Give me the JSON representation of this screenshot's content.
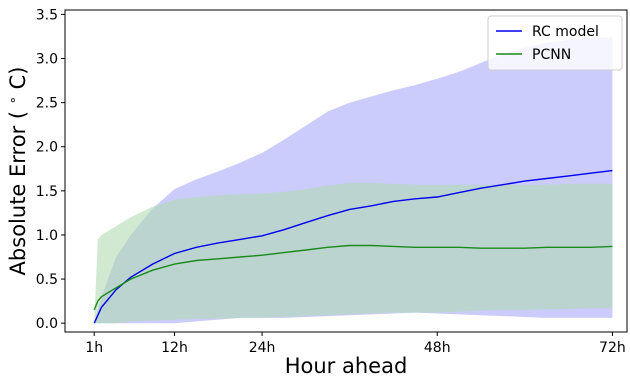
{
  "chart_data": {
    "type": "line",
    "xlabel": "Hour ahead",
    "ylabel": "Absolute Error ( $^\\circ$C)",
    "ylabel_display": "Absolute Error (",
    "ylabel_unit": "C)",
    "ylabel_degree": "∘",
    "xlim": [
      -3,
      74
    ],
    "ylim": [
      -0.1,
      3.55
    ],
    "x_ticks": [
      {
        "value": 1,
        "label": "1h"
      },
      {
        "value": 12,
        "label": "12h"
      },
      {
        "value": 24,
        "label": "24h"
      },
      {
        "value": 48,
        "label": "48h"
      },
      {
        "value": 72,
        "label": "72h"
      }
    ],
    "y_ticks": [
      {
        "value": 0.0,
        "label": "0.0"
      },
      {
        "value": 0.5,
        "label": "0.5"
      },
      {
        "value": 1.0,
        "label": "1.0"
      },
      {
        "value": 1.5,
        "label": "1.5"
      },
      {
        "value": 2.0,
        "label": "2.0"
      },
      {
        "value": 2.5,
        "label": "2.5"
      },
      {
        "value": 3.0,
        "label": "3.0"
      },
      {
        "value": 3.5,
        "label": "3.5"
      }
    ],
    "grid": false,
    "legend_position": "top-right",
    "series": [
      {
        "name": "RC model",
        "color": "#0000ee",
        "band_color": "#a8a8fa",
        "x": [
          1,
          2,
          4,
          6,
          9,
          12,
          15,
          18,
          21,
          24,
          27,
          30,
          33,
          36,
          39,
          42,
          45,
          48,
          51,
          54,
          57,
          60,
          63,
          66,
          69,
          72
        ],
        "mean": [
          0.0,
          0.18,
          0.38,
          0.52,
          0.67,
          0.79,
          0.86,
          0.91,
          0.95,
          0.99,
          1.06,
          1.14,
          1.22,
          1.29,
          1.33,
          1.38,
          1.41,
          1.43,
          1.48,
          1.53,
          1.57,
          1.61,
          1.64,
          1.67,
          1.7,
          1.73
        ],
        "upper": [
          0.0,
          0.3,
          0.75,
          1.0,
          1.3,
          1.52,
          1.63,
          1.72,
          1.82,
          1.93,
          2.08,
          2.24,
          2.4,
          2.5,
          2.57,
          2.64,
          2.7,
          2.77,
          2.85,
          2.95,
          3.05,
          3.12,
          3.18,
          3.21,
          3.23,
          3.24
        ],
        "lower": [
          0.0,
          0.0,
          0.0,
          0.0,
          0.0,
          0.0,
          0.02,
          0.04,
          0.06,
          0.06,
          0.06,
          0.07,
          0.08,
          0.09,
          0.1,
          0.11,
          0.12,
          0.11,
          0.1,
          0.09,
          0.08,
          0.07,
          0.06,
          0.06,
          0.06,
          0.06
        ]
      },
      {
        "name": "PCNN",
        "color": "#1a8a1a",
        "band_color": "#b3dbb3",
        "x": [
          1,
          1.5,
          2,
          4,
          6,
          9,
          12,
          15,
          18,
          21,
          24,
          27,
          30,
          33,
          36,
          39,
          42,
          45,
          48,
          51,
          54,
          57,
          60,
          63,
          66,
          69,
          72
        ],
        "mean": [
          0.15,
          0.25,
          0.3,
          0.4,
          0.5,
          0.6,
          0.67,
          0.71,
          0.73,
          0.75,
          0.77,
          0.8,
          0.83,
          0.86,
          0.88,
          0.88,
          0.87,
          0.86,
          0.86,
          0.86,
          0.85,
          0.85,
          0.85,
          0.86,
          0.86,
          0.86,
          0.87
        ],
        "upper": [
          0.0,
          0.95,
          1.0,
          1.1,
          1.2,
          1.32,
          1.4,
          1.43,
          1.45,
          1.46,
          1.47,
          1.49,
          1.52,
          1.56,
          1.59,
          1.59,
          1.58,
          1.57,
          1.57,
          1.57,
          1.57,
          1.57,
          1.57,
          1.57,
          1.58,
          1.58,
          1.58
        ],
        "lower": [
          0.0,
          0.0,
          0.0,
          0.0,
          0.02,
          0.03,
          0.04,
          0.05,
          0.05,
          0.06,
          0.06,
          0.07,
          0.08,
          0.09,
          0.1,
          0.11,
          0.12,
          0.12,
          0.12,
          0.13,
          0.14,
          0.15,
          0.15,
          0.16,
          0.16,
          0.17,
          0.17
        ]
      }
    ]
  }
}
